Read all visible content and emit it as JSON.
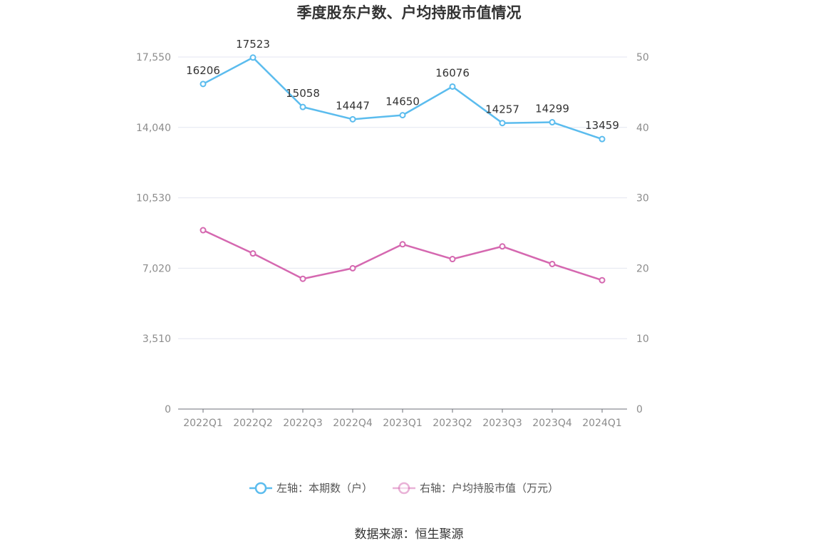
{
  "chart_data": {
    "type": "line",
    "title": "季度股东户数、户均持股市值情况",
    "categories": [
      "2022Q1",
      "2022Q2",
      "2022Q3",
      "2022Q4",
      "2023Q1",
      "2023Q2",
      "2023Q3",
      "2023Q4",
      "2024Q1"
    ],
    "y_left": {
      "ticks": [
        "0",
        "3,510",
        "7,020",
        "10,530",
        "14,040",
        "17,550"
      ],
      "range": [
        0,
        17550
      ]
    },
    "y_right": {
      "ticks": [
        "0",
        "10",
        "20",
        "30",
        "40",
        "50"
      ],
      "range": [
        0,
        50
      ]
    },
    "series": [
      {
        "name": "左轴：本期数（户）",
        "axis": "left",
        "color": "#5bbcee",
        "values": [
          16206,
          17523,
          15058,
          14447,
          14650,
          16076,
          14257,
          14299,
          13459
        ],
        "labels": [
          "16206",
          "17523",
          "15058",
          "14447",
          "14650",
          "16076",
          "14257",
          "14299",
          "13459"
        ]
      },
      {
        "name": "右轴：户均持股市值（万元）",
        "axis": "right",
        "color": "#d568b0",
        "values": [
          25.4,
          22.1,
          18.5,
          20.0,
          23.4,
          21.3,
          23.1,
          20.6,
          18.3
        ]
      }
    ],
    "legend_position": "bottom",
    "grid": true
  },
  "source_text": "数据来源：恒生聚源"
}
